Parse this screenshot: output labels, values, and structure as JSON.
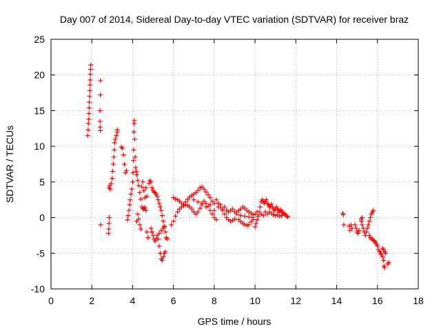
{
  "chart_data": {
    "type": "scatter",
    "title": "Day 007 of 2014, Sidereal Day-to-day VTEC variation (SDTVAR) for receiver braz",
    "xlabel": "GPS time / hours",
    "ylabel": "SDTVAR / TECUs",
    "xlim": [
      0,
      18
    ],
    "ylim": [
      -10,
      25
    ],
    "xticks": [
      0,
      2,
      4,
      6,
      8,
      10,
      12,
      14,
      16,
      18
    ],
    "yticks": [
      -10,
      -5,
      0,
      5,
      10,
      15,
      20,
      25
    ],
    "grid": true,
    "marker": "+",
    "marker_color": "#ff0000",
    "series": [
      {
        "name": "SDTVAR",
        "color": "#ff0000",
        "points": [
          [
            1.8,
            11.5
          ],
          [
            1.82,
            12.3
          ],
          [
            1.83,
            13.2
          ],
          [
            1.85,
            13.8
          ],
          [
            1.86,
            14.6
          ],
          [
            1.87,
            15.4
          ],
          [
            1.88,
            16.2
          ],
          [
            1.89,
            17.0
          ],
          [
            1.9,
            17.8
          ],
          [
            1.91,
            18.6
          ],
          [
            1.92,
            19.3
          ],
          [
            1.93,
            20.1
          ],
          [
            1.94,
            20.8
          ],
          [
            1.95,
            21.4
          ],
          [
            2.42,
            19.2
          ],
          [
            2.42,
            17.2
          ],
          [
            2.4,
            15.0
          ],
          [
            2.4,
            13.5
          ],
          [
            2.41,
            12.7
          ],
          [
            2.42,
            12.2
          ],
          [
            2.43,
            -1.0
          ],
          [
            2.82,
            -2.2
          ],
          [
            2.83,
            -1.6
          ],
          [
            2.84,
            -0.8
          ],
          [
            2.85,
            0.0
          ],
          [
            2.85,
            4.2
          ],
          [
            2.88,
            4.5
          ],
          [
            2.9,
            4.0
          ],
          [
            2.95,
            4.8
          ],
          [
            3.0,
            5.5
          ],
          [
            3.02,
            6.5
          ],
          [
            3.05,
            7.5
          ],
          [
            3.08,
            8.5
          ],
          [
            3.1,
            9.5
          ],
          [
            3.12,
            10.5
          ],
          [
            3.15,
            11.0
          ],
          [
            3.2,
            11.5
          ],
          [
            3.25,
            12.0
          ],
          [
            3.25,
            12.3
          ],
          [
            3.45,
            9.9
          ],
          [
            3.5,
            9.7
          ],
          [
            3.55,
            8.8
          ],
          [
            3.6,
            7.5
          ],
          [
            3.65,
            6.3
          ],
          [
            3.7,
            6.6
          ],
          [
            3.75,
            -0.3
          ],
          [
            3.78,
            0.3
          ],
          [
            3.82,
            1.0
          ],
          [
            3.85,
            1.8
          ],
          [
            3.88,
            2.5
          ],
          [
            3.92,
            3.3
          ],
          [
            3.96,
            4.0
          ],
          [
            4.0,
            5.0
          ],
          [
            4.02,
            6.3
          ],
          [
            4.04,
            8.0
          ],
          [
            4.05,
            9.5
          ],
          [
            4.06,
            12.0
          ],
          [
            4.07,
            13.2
          ],
          [
            4.08,
            13.6
          ],
          [
            4.1,
            11.0
          ],
          [
            4.12,
            8.5
          ],
          [
            4.15,
            7.0
          ],
          [
            4.18,
            6.5
          ],
          [
            4.2,
            6.0
          ],
          [
            4.25,
            5.2
          ],
          [
            4.3,
            4.5
          ],
          [
            4.35,
            3.5
          ],
          [
            4.4,
            2.6
          ],
          [
            4.45,
            4.3
          ],
          [
            4.5,
            5.0
          ],
          [
            4.55,
            3.8
          ],
          [
            4.6,
            2.8
          ],
          [
            4.65,
            4.2
          ],
          [
            4.7,
            3.0
          ],
          [
            4.2,
            -0.5
          ],
          [
            4.25,
            0.5
          ],
          [
            4.3,
            -0.2
          ],
          [
            4.35,
            -1.0
          ],
          [
            4.4,
            -1.6
          ],
          [
            4.45,
            1.5
          ],
          [
            4.5,
            1.2
          ],
          [
            4.55,
            1.3
          ],
          [
            4.6,
            1.4
          ],
          [
            4.65,
            1.0
          ],
          [
            4.7,
            -2.0
          ],
          [
            4.75,
            -2.8
          ],
          [
            4.8,
            4.8
          ],
          [
            4.85,
            5.2
          ],
          [
            4.9,
            5.0
          ],
          [
            4.95,
            4.2
          ],
          [
            5.0,
            3.8
          ],
          [
            5.05,
            3.6
          ],
          [
            5.1,
            3.5
          ],
          [
            5.15,
            3.3
          ],
          [
            5.2,
            3.0
          ],
          [
            5.25,
            2.5
          ],
          [
            5.3,
            2.0
          ],
          [
            5.35,
            1.5
          ],
          [
            5.4,
            1.0
          ],
          [
            5.45,
            0.3
          ],
          [
            5.5,
            -0.5
          ],
          [
            5.55,
            -1.2
          ],
          [
            5.6,
            -2.0
          ],
          [
            5.65,
            -2.8
          ],
          [
            5.68,
            -3.0
          ],
          [
            4.9,
            -1.5
          ],
          [
            4.95,
            -2.0
          ],
          [
            5.0,
            -2.5
          ],
          [
            5.05,
            -3.0
          ],
          [
            5.1,
            -3.3
          ],
          [
            5.15,
            -3.0
          ],
          [
            5.2,
            -2.5
          ],
          [
            5.25,
            -3.0
          ],
          [
            5.3,
            -4.0
          ],
          [
            5.35,
            -5.0
          ],
          [
            5.4,
            -5.8
          ],
          [
            5.45,
            -6.0
          ],
          [
            5.5,
            -5.5
          ],
          [
            5.55,
            -5.0
          ],
          [
            5.6,
            -4.8
          ],
          [
            5.3,
            -2.2
          ],
          [
            5.4,
            -1.8
          ],
          [
            5.5,
            -1.5
          ],
          [
            5.55,
            -1.3
          ],
          [
            5.9,
            -1.0
          ],
          [
            6.0,
            -0.5
          ],
          [
            6.1,
            0.2
          ],
          [
            6.2,
            0.8
          ],
          [
            6.3,
            1.2
          ],
          [
            6.4,
            1.5
          ],
          [
            6.5,
            1.7
          ],
          [
            6.6,
            1.8
          ],
          [
            6.7,
            1.7
          ],
          [
            6.8,
            1.5
          ],
          [
            6.0,
            2.8
          ],
          [
            6.1,
            2.6
          ],
          [
            6.2,
            2.5
          ],
          [
            6.3,
            2.3
          ],
          [
            6.4,
            2.0
          ],
          [
            6.5,
            1.8
          ],
          [
            6.6,
            2.2
          ],
          [
            6.7,
            2.6
          ],
          [
            6.8,
            2.9
          ],
          [
            6.9,
            3.1
          ],
          [
            7.0,
            3.3
          ],
          [
            7.1,
            3.5
          ],
          [
            7.2,
            3.8
          ],
          [
            7.3,
            4.2
          ],
          [
            7.4,
            4.3
          ],
          [
            7.5,
            4.0
          ],
          [
            7.6,
            3.6
          ],
          [
            7.7,
            3.2
          ],
          [
            7.8,
            2.8
          ],
          [
            7.9,
            2.3
          ],
          [
            8.0,
            2.0
          ],
          [
            6.9,
            1.2
          ],
          [
            7.0,
            0.8
          ],
          [
            7.1,
            0.5
          ],
          [
            7.2,
            0.8
          ],
          [
            7.3,
            1.3
          ],
          [
            7.4,
            2.0
          ],
          [
            7.5,
            2.3
          ],
          [
            7.6,
            2.0
          ],
          [
            7.7,
            1.6
          ],
          [
            7.8,
            1.0
          ],
          [
            7.9,
            0.5
          ],
          [
            8.0,
            0.0
          ],
          [
            8.1,
            -0.3
          ],
          [
            7.0,
            2.5
          ],
          [
            7.2,
            2.2
          ],
          [
            7.4,
            1.8
          ],
          [
            7.6,
            1.5
          ],
          [
            7.8,
            1.8
          ],
          [
            8.0,
            1.0
          ],
          [
            8.1,
            2.5
          ],
          [
            8.2,
            2.0
          ],
          [
            8.3,
            1.5
          ],
          [
            8.4,
            1.0
          ],
          [
            8.5,
            0.5
          ],
          [
            8.6,
            0.0
          ],
          [
            8.7,
            -0.3
          ],
          [
            8.8,
            -0.5
          ],
          [
            8.9,
            -0.4
          ],
          [
            9.0,
            -0.2
          ],
          [
            8.2,
            1.5
          ],
          [
            8.3,
            1.8
          ],
          [
            8.4,
            1.2
          ],
          [
            8.5,
            1.5
          ],
          [
            8.6,
            1.0
          ],
          [
            8.7,
            0.8
          ],
          [
            8.8,
            1.0
          ],
          [
            8.9,
            1.2
          ],
          [
            9.0,
            0.8
          ],
          [
            9.1,
            0.5
          ],
          [
            9.1,
            0.8
          ],
          [
            9.2,
            1.0
          ],
          [
            9.3,
            1.2
          ],
          [
            9.4,
            1.5
          ],
          [
            9.5,
            1.3
          ],
          [
            9.6,
            1.0
          ],
          [
            9.7,
            0.8
          ],
          [
            9.8,
            0.6
          ],
          [
            9.9,
            0.4
          ],
          [
            10.0,
            0.5
          ],
          [
            10.1,
            0.8
          ],
          [
            9.2,
            -0.3
          ],
          [
            9.3,
            -0.6
          ],
          [
            9.4,
            -0.8
          ],
          [
            9.5,
            -1.0
          ],
          [
            9.6,
            -1.1
          ],
          [
            9.7,
            -1.0
          ],
          [
            9.8,
            -0.6
          ],
          [
            9.9,
            -0.3
          ],
          [
            9.3,
            0.3
          ],
          [
            9.5,
            0.2
          ],
          [
            9.7,
            0.1
          ],
          [
            9.9,
            0.0
          ],
          [
            10.0,
            -1.3
          ],
          [
            10.05,
            -0.8
          ],
          [
            10.1,
            -0.3
          ],
          [
            10.15,
            0.2
          ],
          [
            10.2,
            0.8
          ],
          [
            10.25,
            1.5
          ],
          [
            10.3,
            2.2
          ],
          [
            10.35,
            2.5
          ],
          [
            10.4,
            2.3
          ],
          [
            10.45,
            2.0
          ],
          [
            10.5,
            2.2
          ],
          [
            10.55,
            2.5
          ],
          [
            10.6,
            2.0
          ],
          [
            10.65,
            1.8
          ],
          [
            10.7,
            1.5
          ],
          [
            10.75,
            1.6
          ],
          [
            10.8,
            1.9
          ],
          [
            10.85,
            1.5
          ],
          [
            10.9,
            1.2
          ],
          [
            10.95,
            1.0
          ],
          [
            11.0,
            1.2
          ],
          [
            11.05,
            1.5
          ],
          [
            11.1,
            1.2
          ],
          [
            11.15,
            1.0
          ],
          [
            11.2,
            0.8
          ],
          [
            11.25,
            1.1
          ],
          [
            11.3,
            0.9
          ],
          [
            11.35,
            0.7
          ],
          [
            11.4,
            0.6
          ],
          [
            11.45,
            0.5
          ],
          [
            11.5,
            0.4
          ],
          [
            11.55,
            0.2
          ],
          [
            11.6,
            0.1
          ],
          [
            10.3,
            0.5
          ],
          [
            10.4,
            0.3
          ],
          [
            10.5,
            0.8
          ],
          [
            10.6,
            0.5
          ],
          [
            10.7,
            0.8
          ],
          [
            10.8,
            0.6
          ],
          [
            10.9,
            0.4
          ],
          [
            11.0,
            0.3
          ],
          [
            11.1,
            0.4
          ],
          [
            11.2,
            0.2
          ],
          [
            11.3,
            0.3
          ],
          [
            14.3,
            0.6
          ],
          [
            14.32,
            0.4
          ],
          [
            14.35,
            -1.0
          ],
          [
            14.6,
            -1.2
          ],
          [
            14.65,
            -1.8
          ],
          [
            14.7,
            -1.0
          ],
          [
            14.75,
            -1.5
          ],
          [
            14.9,
            -1.0
          ],
          [
            14.95,
            -1.5
          ],
          [
            15.0,
            -2.0
          ],
          [
            15.05,
            -2.2
          ],
          [
            15.1,
            -1.8
          ],
          [
            15.2,
            -0.5
          ],
          [
            15.25,
            -1.0
          ],
          [
            15.3,
            -1.5
          ],
          [
            15.35,
            -2.0
          ],
          [
            15.2,
            -0.2
          ],
          [
            15.25,
            0.0
          ],
          [
            15.4,
            -2.5
          ],
          [
            15.45,
            -2.0
          ],
          [
            15.5,
            -1.5
          ],
          [
            15.55,
            -1.0
          ],
          [
            15.6,
            -0.5
          ],
          [
            15.65,
            0.0
          ],
          [
            15.7,
            0.5
          ],
          [
            15.75,
            0.8
          ],
          [
            15.8,
            1.0
          ],
          [
            15.6,
            -2.5
          ],
          [
            15.65,
            -2.8
          ],
          [
            15.7,
            -3.0
          ],
          [
            15.75,
            -3.0
          ],
          [
            15.8,
            -3.2
          ],
          [
            15.85,
            -3.3
          ],
          [
            15.9,
            -3.5
          ],
          [
            15.95,
            -3.7
          ],
          [
            16.0,
            -4.0
          ],
          [
            16.05,
            -4.5
          ],
          [
            16.1,
            -4.8
          ],
          [
            16.15,
            -5.0
          ],
          [
            16.2,
            -5.2
          ],
          [
            16.25,
            -5.5
          ],
          [
            16.3,
            -6.0
          ],
          [
            16.32,
            -6.8
          ],
          [
            16.35,
            -7.0
          ],
          [
            16.25,
            -4.3
          ],
          [
            16.3,
            -4.5
          ],
          [
            16.35,
            -4.8
          ],
          [
            16.4,
            -5.0
          ],
          [
            16.5,
            -6.5
          ],
          [
            16.55,
            -6.3
          ]
        ]
      }
    ]
  }
}
